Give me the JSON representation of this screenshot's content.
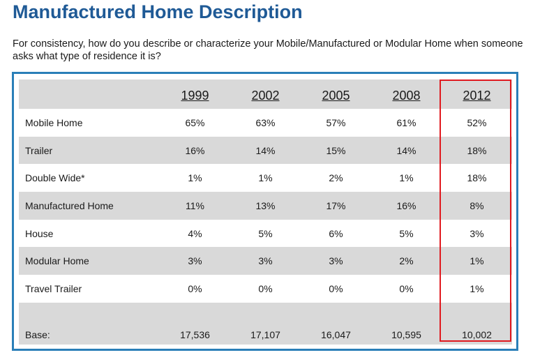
{
  "title": "Manufactured Home Description",
  "question": "For consistency, how do you describe or characterize your Mobile/Manufactured or Modular Home when someone asks what type of residence it is?",
  "chart_data": {
    "type": "table",
    "columns": [
      "1999",
      "2002",
      "2005",
      "2008",
      "2012"
    ],
    "rows": [
      {
        "label": "Mobile Home",
        "values": [
          "65%",
          "63%",
          "57%",
          "61%",
          "52%"
        ]
      },
      {
        "label": "Trailer",
        "values": [
          "16%",
          "14%",
          "15%",
          "14%",
          "18%"
        ]
      },
      {
        "label": "Double Wide*",
        "values": [
          "1%",
          "1%",
          "2%",
          "1%",
          "18%"
        ]
      },
      {
        "label": "Manufactured Home",
        "values": [
          "11%",
          "13%",
          "17%",
          "16%",
          "8%"
        ]
      },
      {
        "label": "House",
        "values": [
          "4%",
          "5%",
          "6%",
          "5%",
          "3%"
        ]
      },
      {
        "label": "Modular Home",
        "values": [
          "3%",
          "3%",
          "3%",
          "2%",
          "1%"
        ]
      },
      {
        "label": "Travel Trailer",
        "values": [
          "0%",
          "0%",
          "0%",
          "0%",
          "1%"
        ]
      }
    ],
    "base": {
      "label": "Base:",
      "values": [
        "17,536",
        "17,107",
        "16,047",
        "10,595",
        "10,002"
      ]
    },
    "highlighted_column": "2012",
    "highlight_color": "#e0191f"
  },
  "colors": {
    "title": "#1f5a96",
    "frame": "#2a7fb8",
    "shade": "#d9d9d9"
  }
}
